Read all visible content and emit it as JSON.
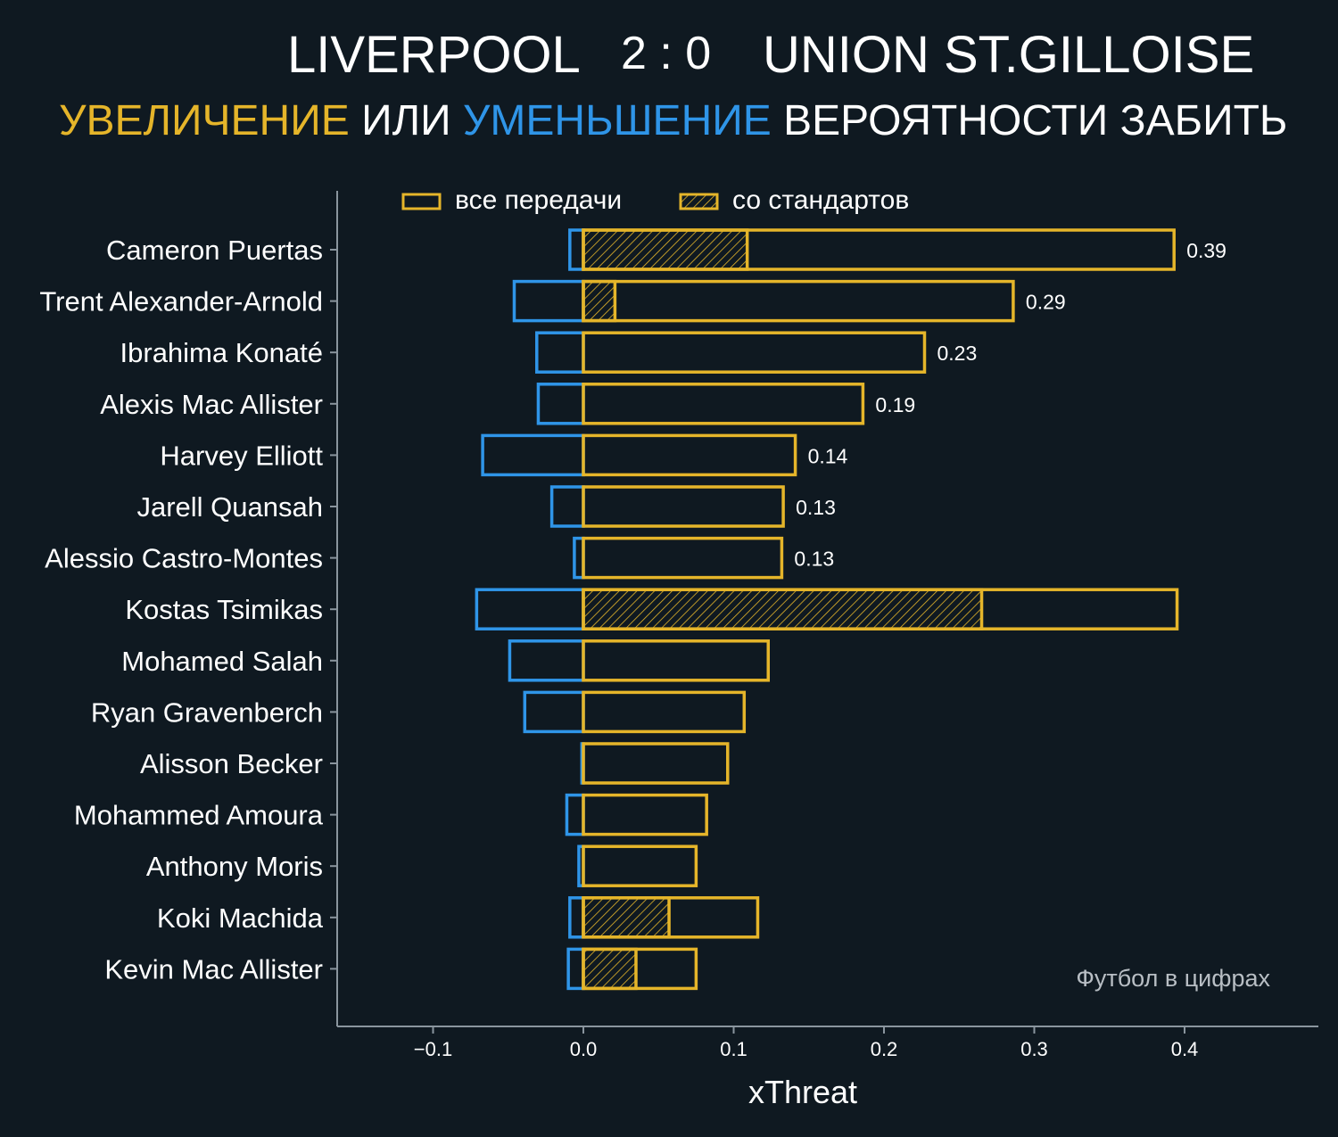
{
  "header": {
    "home_team": "LIVERPOOL",
    "score": "2 : 0",
    "away_team": "UNION ST.GILLOISE",
    "subtitle_increase": "УВЕЛИЧЕНИЕ",
    "subtitle_or": "ИЛИ",
    "subtitle_decrease": "УМЕНЬШЕНИЕ",
    "subtitle_rest": "ВЕРОЯТНОСТИ ЗАБИТЬ"
  },
  "colors": {
    "background": "#0f1921",
    "increase": "#e5b52a",
    "decrease": "#2f95e8",
    "axis": "#8a959e"
  },
  "watermark": "Футбол в цифрах",
  "chart_data": {
    "type": "bar",
    "orientation": "horizontal",
    "xlabel": "xThreat",
    "ylabel": "",
    "xlim": [
      -0.165,
      0.49
    ],
    "xticks": [
      -0.1,
      0.0,
      0.1,
      0.2,
      0.3,
      0.4
    ],
    "xtick_labels": [
      "−0.1",
      "0.0",
      "0.1",
      "0.2",
      "0.3",
      "0.4"
    ],
    "legend": {
      "placement": "top",
      "entries": [
        {
          "label": "все передачи",
          "style": "outline"
        },
        {
          "label": "со стандартов",
          "style": "hatched"
        }
      ]
    },
    "categories": [
      "Cameron Puertas",
      "Trent Alexander-Arnold",
      "Ibrahima Konaté",
      "Alexis Mac Allister",
      "Harvey Elliott",
      "Jarell Quansah",
      "Alessio Castro-Montes",
      "Kostas Tsimikas",
      "Mohamed Salah",
      "Ryan Gravenberch",
      "Alisson Becker",
      "Mohammed Amoura",
      "Anthony Moris",
      "Koki Machida",
      "Kevin Mac Allister"
    ],
    "series": [
      {
        "name": "все передачи",
        "values": [
          0.393,
          0.286,
          0.227,
          0.186,
          0.141,
          0.133,
          0.132,
          0.395,
          0.123,
          0.107,
          0.096,
          0.082,
          0.075,
          0.116,
          0.075
        ]
      },
      {
        "name": "со стандартов",
        "values": [
          0.109,
          0.021,
          0,
          0,
          0,
          0,
          0,
          0.265,
          0,
          0,
          0,
          0,
          0,
          0.057,
          0.035
        ]
      },
      {
        "name": "",
        "values": [
          -0.009,
          -0.046,
          -0.031,
          -0.03,
          -0.067,
          -0.021,
          -0.006,
          -0.071,
          -0.049,
          -0.039,
          -0.001,
          -0.011,
          -0.003,
          -0.009,
          -0.01
        ]
      }
    ],
    "value_labels": [
      "0.39",
      "0.29",
      "0.23",
      "0.19",
      "0.14",
      "0.13",
      "0.13",
      "",
      "",
      "",
      "",
      "",
      "",
      "",
      ""
    ]
  }
}
